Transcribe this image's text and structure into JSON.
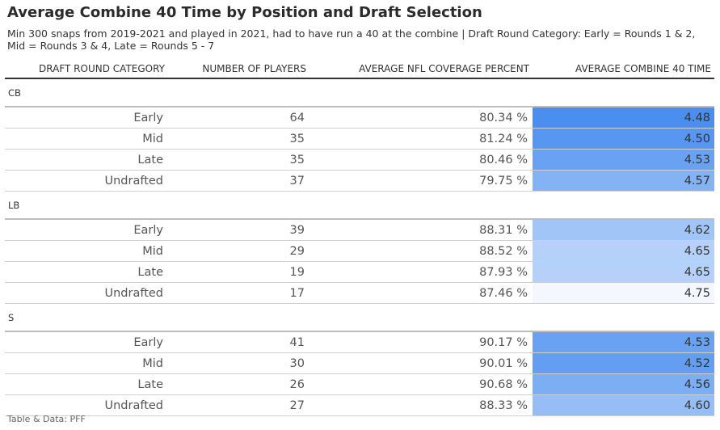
{
  "title": "Average Combine 40 Time by Position and Draft Selection",
  "subtitle": "Min 300 snaps from 2019-2021 and played in 2021, had to have run a 40 at the combine | Draft Round Category: Early = Rounds 1 & 2, Mid = Rounds 3 & 4, Late = Rounds 5 - 7",
  "footer": "Table & Data: PFF",
  "chart_data": {
    "type": "table",
    "columns": [
      "DRAFT ROUND CATEGORY",
      "NUMBER OF PLAYERS",
      "AVERAGE NFL COVERAGE PERCENT",
      "AVERAGE COMBINE 40 TIME"
    ],
    "color_scale": {
      "low_value": 4.48,
      "low_color": "#4a8ff0",
      "high_value": 4.75,
      "high_color": "#f4f7fe"
    },
    "groups": [
      {
        "name": "CB",
        "rows": [
          {
            "category": "Early",
            "players": "64",
            "coverage": "80.34 %",
            "time": "4.48"
          },
          {
            "category": "Mid",
            "players": "35",
            "coverage": "81.24 %",
            "time": "4.50"
          },
          {
            "category": "Late",
            "players": "35",
            "coverage": "80.46 %",
            "time": "4.53"
          },
          {
            "category": "Undrafted",
            "players": "37",
            "coverage": "79.75 %",
            "time": "4.57"
          }
        ]
      },
      {
        "name": "LB",
        "rows": [
          {
            "category": "Early",
            "players": "39",
            "coverage": "88.31 %",
            "time": "4.62"
          },
          {
            "category": "Mid",
            "players": "29",
            "coverage": "88.52 %",
            "time": "4.65"
          },
          {
            "category": "Late",
            "players": "19",
            "coverage": "87.93 %",
            "time": "4.65"
          },
          {
            "category": "Undrafted",
            "players": "17",
            "coverage": "87.46 %",
            "time": "4.75"
          }
        ]
      },
      {
        "name": "S",
        "rows": [
          {
            "category": "Early",
            "players": "41",
            "coverage": "90.17 %",
            "time": "4.53"
          },
          {
            "category": "Mid",
            "players": "30",
            "coverage": "90.01 %",
            "time": "4.52"
          },
          {
            "category": "Late",
            "players": "26",
            "coverage": "90.68 %",
            "time": "4.56"
          },
          {
            "category": "Undrafted",
            "players": "27",
            "coverage": "88.33 %",
            "time": "4.60"
          }
        ]
      }
    ]
  }
}
